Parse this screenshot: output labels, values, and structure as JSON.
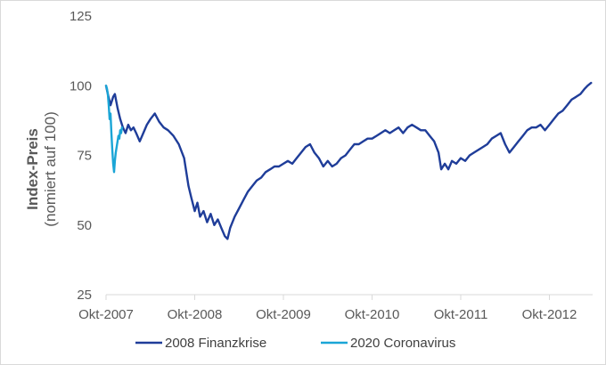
{
  "chart_data": {
    "type": "line",
    "title": "",
    "ylabel": "Index-Preis",
    "ylabel_sub": "(nomiert auf 100)",
    "xlabel": "",
    "ylim": [
      25,
      125
    ],
    "yticks": [
      25,
      50,
      75,
      100,
      125
    ],
    "xticks": [
      "Okt-2007",
      "Okt-2008",
      "Okt-2009",
      "Okt-2010",
      "Okt-2011",
      "Okt-2012"
    ],
    "grid": false,
    "legend_position": "bottom",
    "colors": {
      "finanzkrise": "#1f3d99",
      "coronavirus": "#1aa5d6",
      "axis": "#d9d9d9"
    },
    "series": [
      {
        "name": "2008 Finanzkrise",
        "x_unit": "years since Okt-2007",
        "points": [
          [
            0.0,
            100
          ],
          [
            0.02,
            97
          ],
          [
            0.05,
            93
          ],
          [
            0.08,
            96
          ],
          [
            0.1,
            97
          ],
          [
            0.13,
            92
          ],
          [
            0.16,
            88
          ],
          [
            0.19,
            85
          ],
          [
            0.22,
            83
          ],
          [
            0.25,
            86
          ],
          [
            0.28,
            84
          ],
          [
            0.31,
            85
          ],
          [
            0.34,
            83
          ],
          [
            0.38,
            80
          ],
          [
            0.42,
            83
          ],
          [
            0.46,
            86
          ],
          [
            0.5,
            88
          ],
          [
            0.55,
            90
          ],
          [
            0.6,
            87
          ],
          [
            0.65,
            85
          ],
          [
            0.7,
            84
          ],
          [
            0.76,
            82
          ],
          [
            0.82,
            79
          ],
          [
            0.88,
            74
          ],
          [
            0.93,
            64
          ],
          [
            0.96,
            60
          ],
          [
            1.0,
            55
          ],
          [
            1.03,
            58
          ],
          [
            1.06,
            53
          ],
          [
            1.1,
            55
          ],
          [
            1.14,
            51
          ],
          [
            1.18,
            54
          ],
          [
            1.22,
            50
          ],
          [
            1.26,
            52
          ],
          [
            1.3,
            49
          ],
          [
            1.34,
            46
          ],
          [
            1.37,
            45
          ],
          [
            1.4,
            49
          ],
          [
            1.45,
            53
          ],
          [
            1.5,
            56
          ],
          [
            1.55,
            59
          ],
          [
            1.6,
            62
          ],
          [
            1.65,
            64
          ],
          [
            1.7,
            66
          ],
          [
            1.75,
            67
          ],
          [
            1.8,
            69
          ],
          [
            1.85,
            70
          ],
          [
            1.9,
            71
          ],
          [
            1.95,
            71
          ],
          [
            2.0,
            72
          ],
          [
            2.05,
            73
          ],
          [
            2.1,
            72
          ],
          [
            2.15,
            74
          ],
          [
            2.2,
            76
          ],
          [
            2.25,
            78
          ],
          [
            2.3,
            79
          ],
          [
            2.35,
            76
          ],
          [
            2.4,
            74
          ],
          [
            2.45,
            71
          ],
          [
            2.5,
            73
          ],
          [
            2.55,
            71
          ],
          [
            2.6,
            72
          ],
          [
            2.65,
            74
          ],
          [
            2.7,
            75
          ],
          [
            2.75,
            77
          ],
          [
            2.8,
            79
          ],
          [
            2.85,
            79
          ],
          [
            2.9,
            80
          ],
          [
            2.95,
            81
          ],
          [
            3.0,
            81
          ],
          [
            3.05,
            82
          ],
          [
            3.1,
            83
          ],
          [
            3.15,
            84
          ],
          [
            3.2,
            83
          ],
          [
            3.25,
            84
          ],
          [
            3.3,
            85
          ],
          [
            3.35,
            83
          ],
          [
            3.4,
            85
          ],
          [
            3.45,
            86
          ],
          [
            3.5,
            85
          ],
          [
            3.55,
            84
          ],
          [
            3.6,
            84
          ],
          [
            3.65,
            82
          ],
          [
            3.7,
            80
          ],
          [
            3.75,
            76
          ],
          [
            3.78,
            70
          ],
          [
            3.82,
            72
          ],
          [
            3.86,
            70
          ],
          [
            3.9,
            73
          ],
          [
            3.95,
            72
          ],
          [
            4.0,
            74
          ],
          [
            4.05,
            73
          ],
          [
            4.1,
            75
          ],
          [
            4.15,
            76
          ],
          [
            4.2,
            77
          ],
          [
            4.25,
            78
          ],
          [
            4.3,
            79
          ],
          [
            4.35,
            81
          ],
          [
            4.4,
            82
          ],
          [
            4.45,
            83
          ],
          [
            4.5,
            79
          ],
          [
            4.55,
            76
          ],
          [
            4.6,
            78
          ],
          [
            4.65,
            80
          ],
          [
            4.7,
            82
          ],
          [
            4.75,
            84
          ],
          [
            4.8,
            85
          ],
          [
            4.85,
            85
          ],
          [
            4.9,
            86
          ],
          [
            4.95,
            84
          ],
          [
            5.0,
            86
          ],
          [
            5.05,
            88
          ],
          [
            5.1,
            90
          ],
          [
            5.15,
            91
          ],
          [
            5.2,
            93
          ],
          [
            5.25,
            95
          ],
          [
            5.3,
            96
          ],
          [
            5.35,
            97
          ],
          [
            5.4,
            99
          ],
          [
            5.43,
            100
          ],
          [
            5.47,
            101
          ]
        ]
      },
      {
        "name": "2020 Coronavirus",
        "x_unit": "years since Okt-2007",
        "points": [
          [
            0.0,
            100
          ],
          [
            0.01,
            99
          ],
          [
            0.02,
            97
          ],
          [
            0.03,
            93
          ],
          [
            0.04,
            88
          ],
          [
            0.05,
            90
          ],
          [
            0.06,
            83
          ],
          [
            0.07,
            77
          ],
          [
            0.08,
            72
          ],
          [
            0.09,
            69
          ],
          [
            0.1,
            73
          ],
          [
            0.11,
            76
          ],
          [
            0.12,
            78
          ],
          [
            0.13,
            80
          ],
          [
            0.14,
            82
          ],
          [
            0.15,
            81
          ],
          [
            0.16,
            84
          ],
          [
            0.17,
            83
          ],
          [
            0.18,
            85
          ]
        ]
      }
    ]
  }
}
